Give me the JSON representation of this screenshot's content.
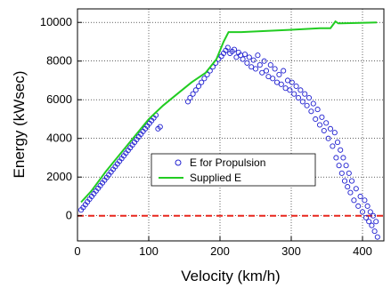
{
  "chart_data": {
    "type": "scatter",
    "title": "",
    "xlabel": "Velocity (km/h)",
    "ylabel": "Energy (kWsec)",
    "xlim": [
      0,
      430
    ],
    "ylim": [
      -1300,
      10700
    ],
    "x_ticks": [
      0,
      100,
      200,
      300,
      400
    ],
    "y_ticks": [
      0,
      2000,
      4000,
      6000,
      8000,
      10000
    ],
    "grid": true,
    "legend_position": "center-bottom",
    "reference_line": {
      "y": 0,
      "color": "#e8261c",
      "style": "dashed"
    },
    "series": [
      {
        "name": "E for Propulsion",
        "kind": "scatter",
        "color": "#2020d0",
        "points": [
          [
            5,
            300
          ],
          [
            8,
            430
          ],
          [
            11,
            570
          ],
          [
            14,
            720
          ],
          [
            17,
            860
          ],
          [
            20,
            1000
          ],
          [
            23,
            1140
          ],
          [
            26,
            1280
          ],
          [
            29,
            1420
          ],
          [
            32,
            1560
          ],
          [
            35,
            1700
          ],
          [
            38,
            1840
          ],
          [
            41,
            1980
          ],
          [
            44,
            2120
          ],
          [
            47,
            2260
          ],
          [
            50,
            2400
          ],
          [
            53,
            2540
          ],
          [
            56,
            2680
          ],
          [
            59,
            2820
          ],
          [
            62,
            2960
          ],
          [
            65,
            3100
          ],
          [
            68,
            3240
          ],
          [
            71,
            3380
          ],
          [
            74,
            3520
          ],
          [
            77,
            3660
          ],
          [
            80,
            3800
          ],
          [
            83,
            3940
          ],
          [
            86,
            4080
          ],
          [
            89,
            4220
          ],
          [
            92,
            4360
          ],
          [
            95,
            4500
          ],
          [
            98,
            4640
          ],
          [
            101,
            4780
          ],
          [
            104,
            4920
          ],
          [
            107,
            5060
          ],
          [
            110,
            5200
          ],
          [
            113,
            4500
          ],
          [
            116,
            4600
          ],
          [
            155,
            5900
          ],
          [
            158,
            6100
          ],
          [
            162,
            6300
          ],
          [
            166,
            6500
          ],
          [
            170,
            6700
          ],
          [
            174,
            6900
          ],
          [
            178,
            7100
          ],
          [
            182,
            7300
          ],
          [
            186,
            7500
          ],
          [
            190,
            7700
          ],
          [
            194,
            7900
          ],
          [
            198,
            8100
          ],
          [
            202,
            8250
          ],
          [
            205,
            8400
          ],
          [
            208,
            8550
          ],
          [
            211,
            8700
          ],
          [
            214,
            8400
          ],
          [
            217,
            8500
          ],
          [
            220,
            8600
          ],
          [
            223,
            8200
          ],
          [
            226,
            8450
          ],
          [
            229,
            8300
          ],
          [
            232,
            8100
          ],
          [
            235,
            8350
          ],
          [
            238,
            7900
          ],
          [
            241,
            8200
          ],
          [
            244,
            7700
          ],
          [
            247,
            8050
          ],
          [
            250,
            7600
          ],
          [
            253,
            8300
          ],
          [
            256,
            7800
          ],
          [
            259,
            7400
          ],
          [
            262,
            8000
          ],
          [
            265,
            7500
          ],
          [
            268,
            7200
          ],
          [
            271,
            7800
          ],
          [
            274,
            7100
          ],
          [
            277,
            7600
          ],
          [
            280,
            6900
          ],
          [
            283,
            7300
          ],
          [
            286,
            6800
          ],
          [
            289,
            7500
          ],
          [
            292,
            6600
          ],
          [
            295,
            7000
          ],
          [
            298,
            6500
          ],
          [
            301,
            6900
          ],
          [
            304,
            6300
          ],
          [
            307,
            6700
          ],
          [
            310,
            6100
          ],
          [
            313,
            6500
          ],
          [
            316,
            5900
          ],
          [
            319,
            6300
          ],
          [
            322,
            5700
          ],
          [
            325,
            6100
          ],
          [
            328,
            5400
          ],
          [
            331,
            5800
          ],
          [
            334,
            5000
          ],
          [
            337,
            5500
          ],
          [
            340,
            4700
          ],
          [
            343,
            5100
          ],
          [
            346,
            4400
          ],
          [
            349,
            4800
          ],
          [
            352,
            4000
          ],
          [
            355,
            4500
          ],
          [
            358,
            3600
          ],
          [
            361,
            4300
          ],
          [
            363,
            3000
          ],
          [
            365,
            3800
          ],
          [
            367,
            2600
          ],
          [
            369,
            3400
          ],
          [
            371,
            2200
          ],
          [
            373,
            3000
          ],
          [
            375,
            1800
          ],
          [
            377,
            2600
          ],
          [
            379,
            1500
          ],
          [
            381,
            2200
          ],
          [
            383,
            1200
          ],
          [
            385,
            1800
          ],
          [
            388,
            800
          ],
          [
            391,
            1400
          ],
          [
            394,
            500
          ],
          [
            397,
            1000
          ],
          [
            400,
            200
          ],
          [
            403,
            800
          ],
          [
            405,
            -100
          ],
          [
            407,
            500
          ],
          [
            409,
            -300
          ],
          [
            411,
            200
          ],
          [
            413,
            -500
          ],
          [
            415,
            0
          ],
          [
            417,
            -800
          ],
          [
            419,
            -300
          ],
          [
            421,
            -1100
          ]
        ]
      },
      {
        "name": "Supplied E",
        "kind": "line",
        "color": "#22cc22",
        "points": [
          [
            5,
            700
          ],
          [
            10,
            900
          ],
          [
            20,
            1300
          ],
          [
            40,
            2300
          ],
          [
            60,
            3200
          ],
          [
            80,
            4100
          ],
          [
            100,
            5000
          ],
          [
            120,
            5700
          ],
          [
            140,
            6300
          ],
          [
            160,
            6900
          ],
          [
            180,
            7400
          ],
          [
            195,
            8100
          ],
          [
            205,
            9000
          ],
          [
            212,
            9500
          ],
          [
            230,
            9500
          ],
          [
            260,
            9550
          ],
          [
            300,
            9620
          ],
          [
            340,
            9700
          ],
          [
            355,
            9700
          ],
          [
            358,
            9850
          ],
          [
            362,
            10050
          ],
          [
            366,
            9950
          ],
          [
            370,
            9950
          ],
          [
            390,
            9970
          ],
          [
            420,
            10000
          ]
        ]
      }
    ]
  }
}
